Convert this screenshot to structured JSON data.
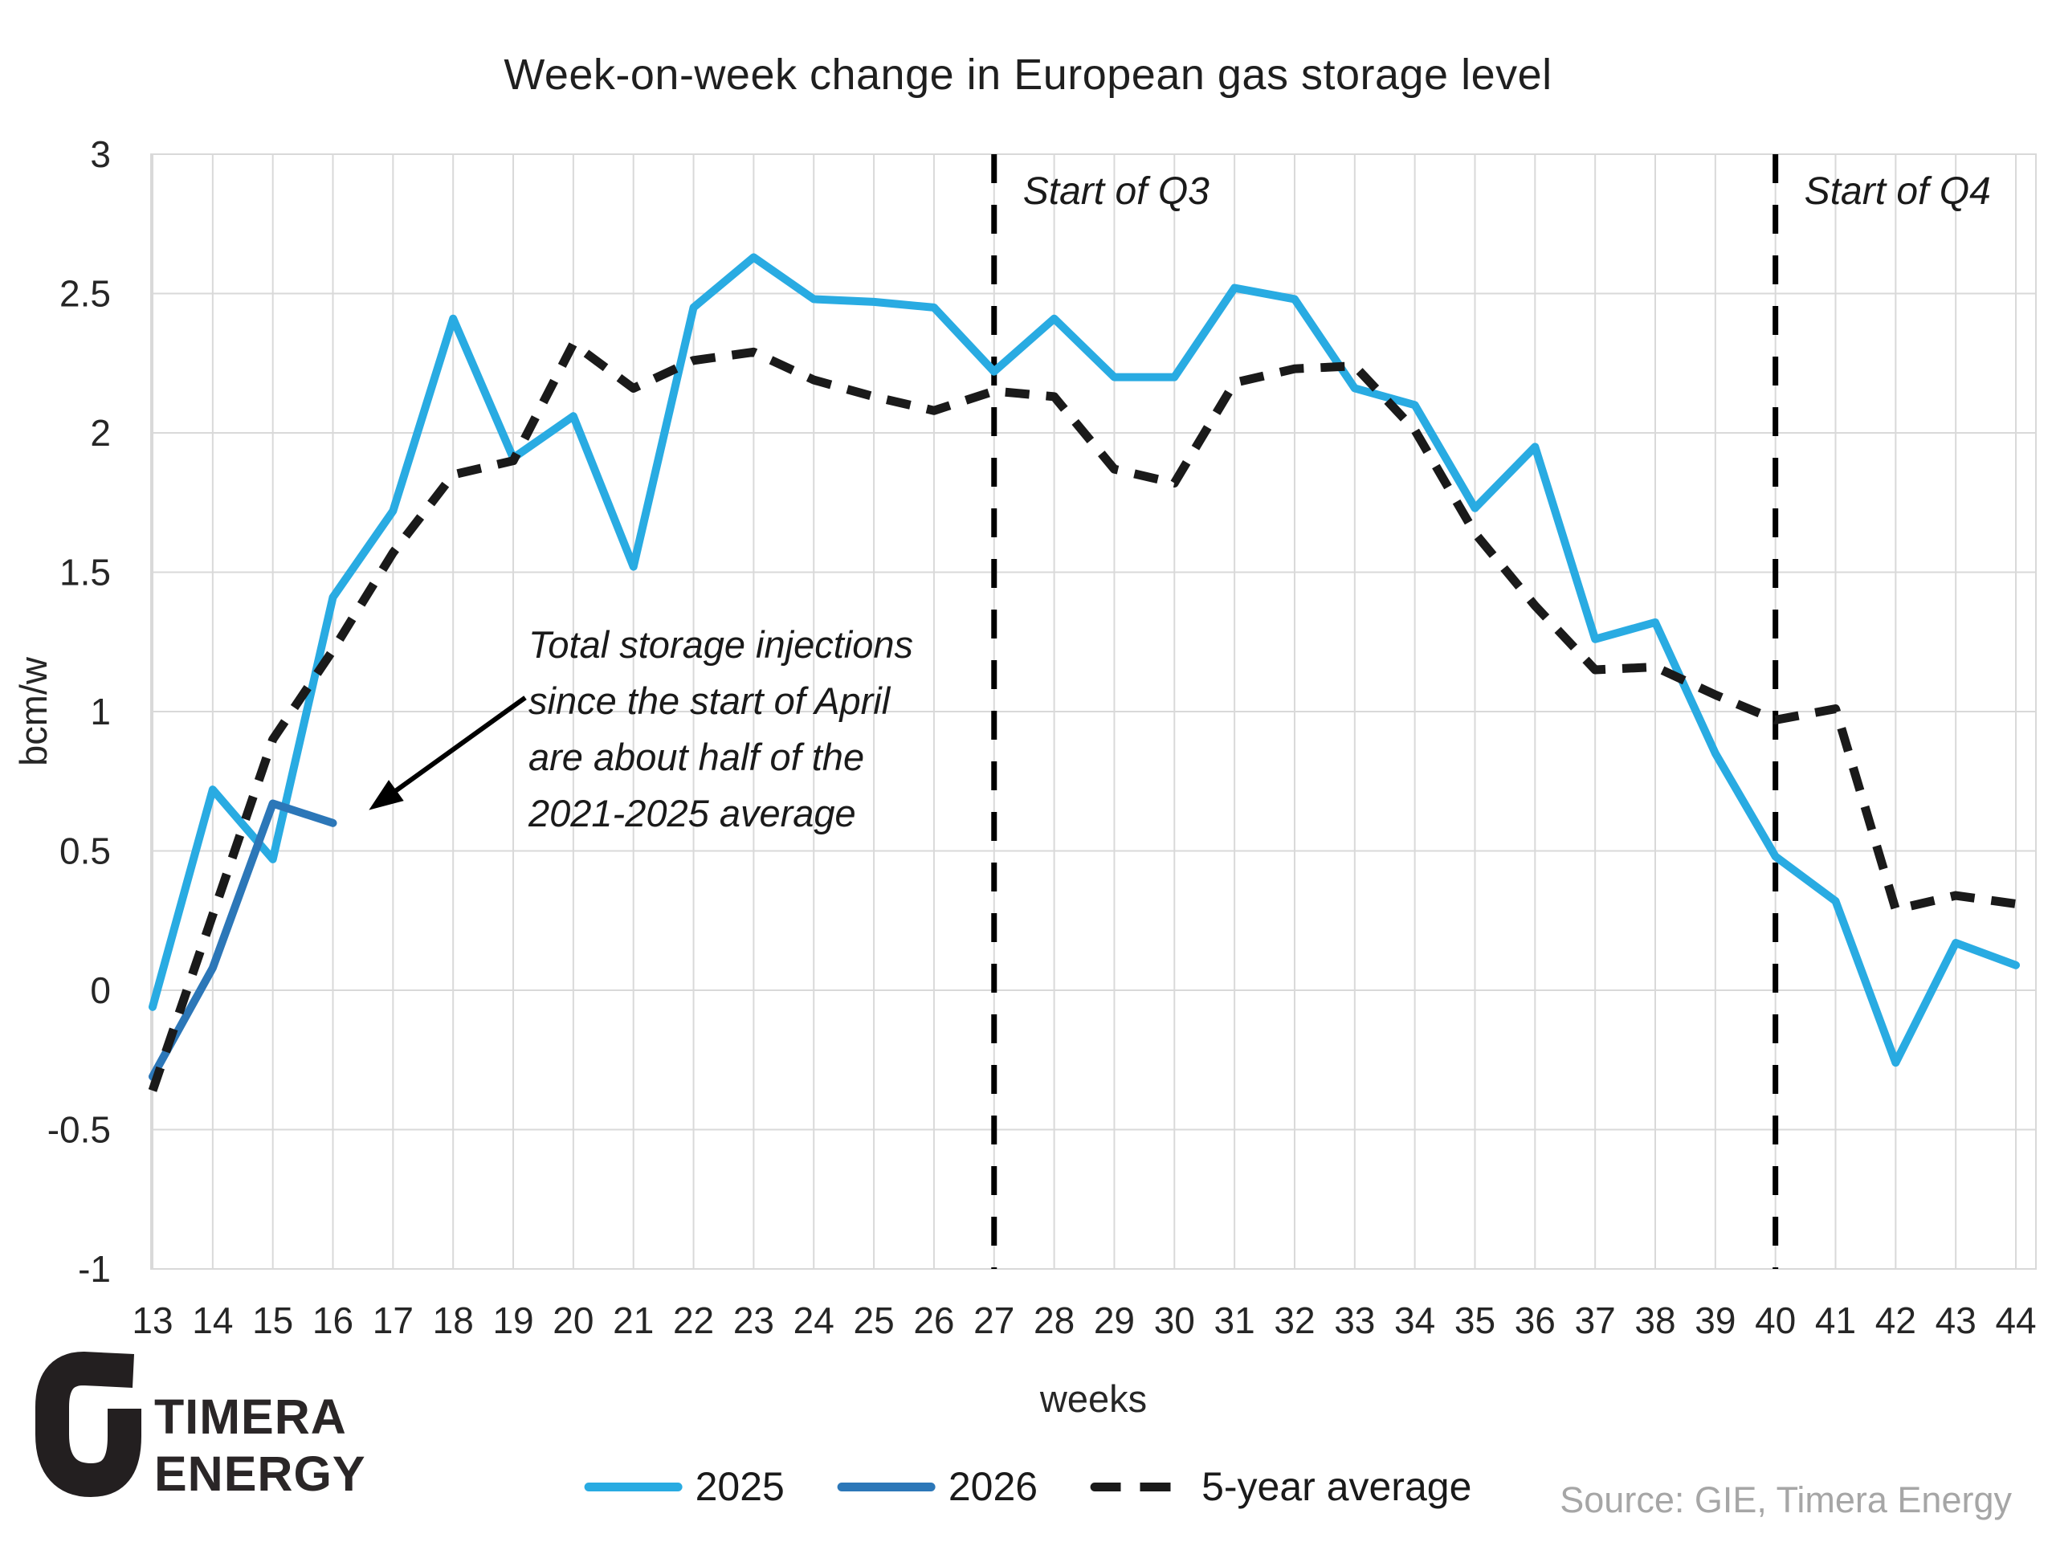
{
  "title": "Week-on-week change in European gas storage level",
  "chart_data": {
    "type": "line",
    "x": [
      13,
      14,
      15,
      16,
      17,
      18,
      19,
      20,
      21,
      22,
      23,
      24,
      25,
      26,
      27,
      28,
      29,
      30,
      31,
      32,
      33,
      34,
      35,
      36,
      37,
      38,
      39,
      40,
      41,
      42,
      43,
      44
    ],
    "xlabel": "weeks",
    "ylabel": "bcm/w",
    "ylim": [
      -1,
      3
    ],
    "yticks": [
      3,
      2.5,
      2,
      1.5,
      1,
      0.5,
      0,
      -0.5,
      -1
    ],
    "grid": true,
    "legend_position": "bottom",
    "series": [
      {
        "name": "2025",
        "style": "solid",
        "color": "#29ABE2",
        "start_week": 13,
        "values": [
          -0.06,
          0.72,
          0.47,
          1.41,
          1.72,
          2.41,
          1.91,
          2.06,
          1.52,
          2.45,
          2.63,
          2.48,
          2.47,
          2.45,
          2.22,
          2.41,
          2.2,
          2.2,
          2.52,
          2.48,
          2.16,
          2.1,
          1.73,
          1.95,
          1.26,
          1.32,
          0.85,
          0.48,
          0.32,
          -0.26,
          0.17,
          0.09
        ]
      },
      {
        "name": "2026",
        "style": "solid",
        "color": "#2C77B8",
        "start_week": 13,
        "values": [
          -0.31,
          0.08,
          0.67,
          0.6
        ]
      },
      {
        "name": "5-year average",
        "style": "dashed",
        "color": "#1A1A1A",
        "start_week": 13,
        "values": [
          -0.36,
          0.27,
          0.9,
          1.22,
          1.57,
          1.85,
          1.9,
          2.32,
          2.16,
          2.26,
          2.29,
          2.19,
          2.13,
          2.08,
          2.15,
          2.13,
          1.87,
          1.82,
          2.18,
          2.23,
          2.24,
          2.01,
          1.64,
          1.38,
          1.15,
          1.16,
          1.06,
          0.97,
          1.01,
          0.29,
          0.34,
          0.31
        ]
      }
    ],
    "reference_lines": [
      {
        "week": 27,
        "label": "Start of Q3"
      },
      {
        "week": 40,
        "label": "Start of Q4"
      }
    ],
    "annotation": {
      "text": "Total storage injections\nsince the start of April\nare about half of the\n2021-2025 average",
      "arrow": {
        "from_week": 19.2,
        "from_value": 1.05,
        "to_week": 16.75,
        "to_value": 0.67
      }
    },
    "colors": {
      "gridline": "#D9D9D9",
      "tick_text": "#262626",
      "reference_line": "#000000"
    }
  },
  "logo": {
    "line1": "TIMERA",
    "line2": "ENERGY"
  },
  "source": "Source: GIE, Timera Energy"
}
